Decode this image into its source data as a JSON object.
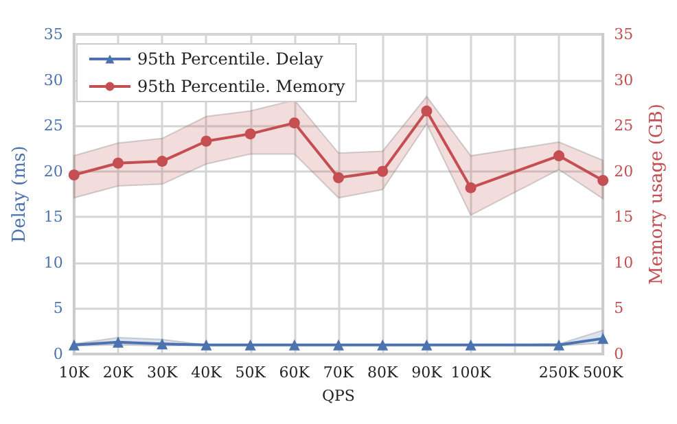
{
  "chart_data": {
    "type": "line",
    "xlabel": "QPS",
    "ylabel": "Delay (ms)",
    "y2label": "Memory usage (GB)",
    "categories": [
      "10K",
      "20K",
      "30K",
      "40K",
      "50K",
      "60K",
      "70K",
      "80K",
      "90K",
      "100K",
      null,
      "250K",
      "500K"
    ],
    "series": [
      {
        "name": "95th Percentile. Delay",
        "color": "#4c72b0",
        "marker": "triangle",
        "values": [
          1.0,
          1.3,
          1.1,
          1.0,
          1.0,
          1.0,
          1.0,
          1.0,
          1.0,
          1.0,
          null,
          1.0,
          1.7
        ],
        "lower": [
          0.9,
          1.0,
          0.9,
          1.0,
          1.0,
          1.0,
          1.0,
          1.0,
          1.0,
          1.0,
          null,
          0.9,
          1.2
        ],
        "upper": [
          1.1,
          1.8,
          1.6,
          1.0,
          1.0,
          1.0,
          1.0,
          1.0,
          1.0,
          1.0,
          null,
          1.1,
          2.6
        ]
      },
      {
        "name": "95th Percentile. Memory",
        "color": "#c44e52",
        "marker": "circle",
        "axis": "y2",
        "values": [
          19.6,
          20.9,
          21.1,
          23.3,
          24.1,
          25.3,
          19.3,
          20.0,
          26.6,
          18.2,
          null,
          21.7,
          19.0
        ],
        "lower": [
          17.1,
          18.4,
          18.6,
          20.8,
          21.9,
          21.9,
          17.1,
          18.0,
          25.2,
          15.2,
          null,
          20.2,
          17.0
        ],
        "upper": [
          21.7,
          23.1,
          23.6,
          26.0,
          26.6,
          27.8,
          22.0,
          22.2,
          28.2,
          21.7,
          null,
          23.2,
          21.2
        ]
      }
    ],
    "ylim": [
      0,
      35
    ],
    "yticks": [
      0,
      5,
      10,
      15,
      20,
      25,
      30,
      35
    ],
    "y2lim": [
      0,
      35
    ],
    "y2ticks": [
      0,
      5,
      10,
      15,
      20,
      25,
      30,
      35
    ],
    "grid": true,
    "legend": "top left",
    "line_style": "solid"
  }
}
